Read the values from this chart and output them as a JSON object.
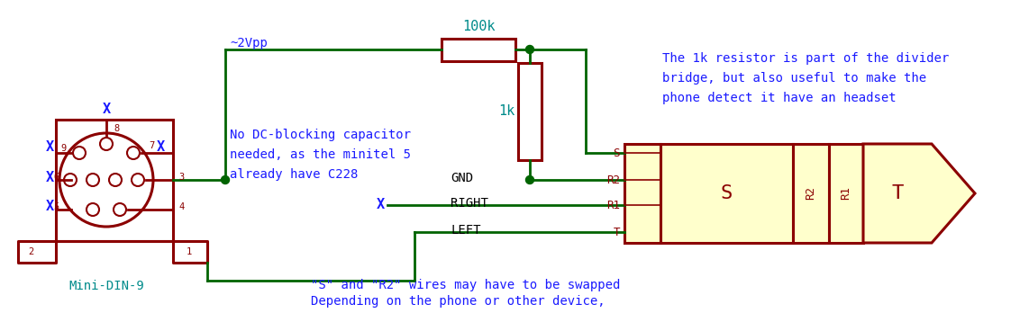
{
  "bg_color": "#ffffff",
  "dark_red": "#8B0000",
  "green": "#006400",
  "teal": "#008B8B",
  "blue": "#1a1aff",
  "connector_fill": "#FFFFCC",
  "figsize": [
    11.42,
    3.48
  ],
  "dpi": 100,
  "text_font": "monospace",
  "annotations": {
    "label_2vpp": "~2Vpp",
    "label_100k": "100k",
    "label_1k": "1k",
    "label_gnd": "GND",
    "label_right": "RIGHT",
    "label_left": "LEFT",
    "label_s": "S",
    "label_r2": "R2",
    "label_r1": "R1",
    "label_t": "T",
    "label_mini_din": "Mini-DIN-9",
    "note1_line1": "No DC-blocking capacitor",
    "note1_line2": "needed, as the minitel 5",
    "note1_line3": "already have C228",
    "note2_line1": "The 1k resistor is part of the divider",
    "note2_line2": "bridge, but also useful to make the",
    "note2_line3": "phone detect it have an headset",
    "note3_line1": "Depending on the phone or other device,",
    "note3_line2": "\"S\" and \"R2\" wires may have to be swapped"
  }
}
